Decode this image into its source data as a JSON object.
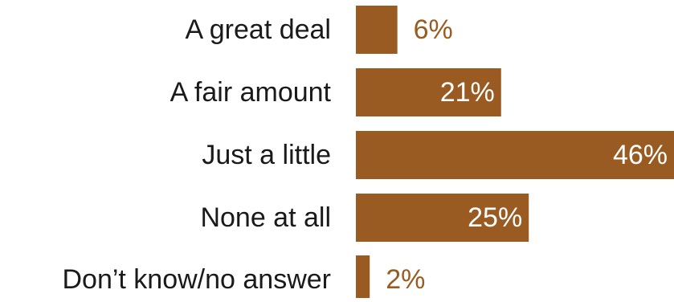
{
  "chart_data": {
    "type": "bar",
    "orientation": "horizontal",
    "categories": [
      "A great deal",
      "A fair amount",
      "Just a little",
      "None at all",
      "Don’t know/no answer"
    ],
    "values": [
      6,
      21,
      46,
      25,
      2
    ],
    "value_labels": [
      "6%",
      "21%",
      "46%",
      "25%",
      "2%"
    ],
    "unit": "%",
    "xlim": [
      0,
      46
    ],
    "grid": false,
    "legend": "none",
    "bar_color": "#9a5b22",
    "label_inside_color": "#ffffff",
    "label_outside_color": "#9a5b22",
    "category_label_color": "#1a1a1a"
  }
}
